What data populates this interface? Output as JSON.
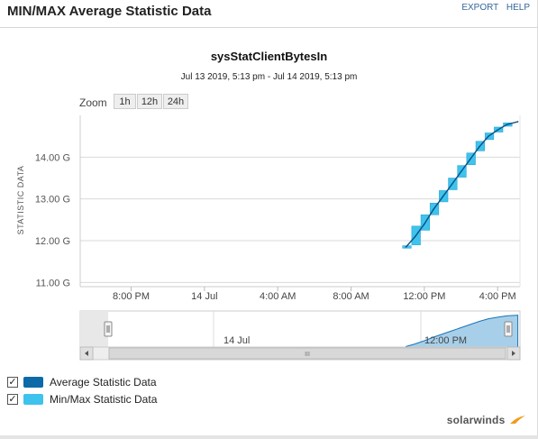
{
  "header": {
    "title": "MIN/MAX Average Statistic Data",
    "export_label": "EXPORT",
    "help_label": "HELP"
  },
  "chart_title": "sysStatClientBytesIn",
  "chart_subtitle": "Jul 13 2019, 5:13 pm - Jul 14 2019, 5:13 pm",
  "zoom": {
    "label": "Zoom",
    "buttons": [
      "1h",
      "12h",
      "24h"
    ]
  },
  "legend": [
    {
      "label": "Average Statistic Data",
      "checked": true,
      "color": "#0b6aa7"
    },
    {
      "label": "Min/Max Statistic Data",
      "checked": true,
      "color": "#3ec3ec"
    }
  ],
  "navigator": {
    "label_left": "14 Jul",
    "label_right": "12:00 PM",
    "scroll_grip": "III"
  },
  "brand": "solarwinds",
  "chart_data": {
    "type": "line",
    "ylabel": "STATISTIC DATA",
    "y_ticks": [
      "11.00 G",
      "12.00 G",
      "13.00 G",
      "14.00 G"
    ],
    "y_tick_values": [
      11.0,
      12.0,
      13.0,
      14.0
    ],
    "ylim": [
      10.9,
      15.0
    ],
    "x_ticks": [
      "8:00 PM",
      "14 Jul",
      "4:00 AM",
      "8:00 AM",
      "12:00 PM",
      "4:00 PM"
    ],
    "x_tick_hours": [
      20,
      24,
      28,
      32,
      36,
      40
    ],
    "xlim_hours": [
      17.22,
      41.22
    ],
    "grid": true,
    "series": [
      {
        "name": "Average Statistic Data",
        "x_hours": [
          35.0,
          35.5,
          36.0,
          36.5,
          37.0,
          37.5,
          38.0,
          38.5,
          39.0,
          39.5,
          40.0,
          40.5,
          41.1
        ],
        "values": [
          11.85,
          12.1,
          12.4,
          12.75,
          13.05,
          13.35,
          13.65,
          13.95,
          14.25,
          14.5,
          14.65,
          14.78,
          14.85
        ]
      },
      {
        "name": "Min/Max Statistic Data",
        "x_hours": [
          35.0,
          35.5,
          36.0,
          36.5,
          37.0,
          37.5,
          38.0,
          38.5,
          39.0,
          39.5,
          40.0,
          40.5
        ],
        "min": [
          11.82,
          11.9,
          12.25,
          12.62,
          12.93,
          13.22,
          13.52,
          13.82,
          14.15,
          14.42,
          14.6,
          14.74
        ],
        "max": [
          11.88,
          12.35,
          12.62,
          12.9,
          13.2,
          13.5,
          13.8,
          14.1,
          14.38,
          14.58,
          14.72,
          14.82
        ]
      }
    ]
  }
}
